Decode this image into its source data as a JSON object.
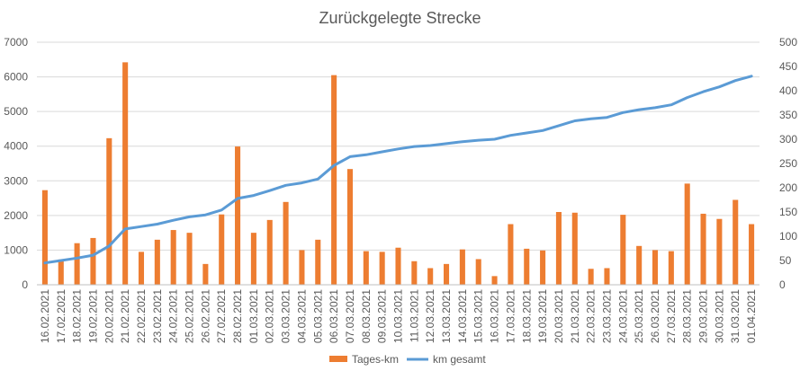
{
  "chart_data": {
    "type": "bar",
    "title": "Zurückgelegte Strecke",
    "xlabel": "",
    "ylabel": "",
    "ylim": [
      0,
      7000
    ],
    "y2lim": [
      0,
      500
    ],
    "yticks": [
      "0",
      "1000",
      "2000",
      "3000",
      "4000",
      "5000",
      "6000",
      "7000"
    ],
    "y2ticks": [
      "0",
      "50",
      "100",
      "150",
      "200",
      "250",
      "300",
      "350",
      "400",
      "450",
      "500"
    ],
    "grid": true,
    "legend": "bottom",
    "categories": [
      "16.02.2021",
      "17.02.2021",
      "18.02.2021",
      "19.02.2021",
      "20.02.2021",
      "21.02.2021",
      "22.02.2021",
      "23.02.2021",
      "24.02.2021",
      "25.02.2021",
      "26.02.2021",
      "27.02.2021",
      "28.02.2021",
      "01.03.2021",
      "02.03.2021",
      "03.03.2021",
      "04.03.2021",
      "05.03.2021",
      "06.03.2021",
      "07.03.2021",
      "08.03.2021",
      "09.03.2021",
      "10.03.2021",
      "11.03.2021",
      "12.03.2021",
      "13.03.2021",
      "14.03.2021",
      "15.03.2021",
      "16.03.2021",
      "17.03.2021",
      "18.03.2021",
      "19.03.2021",
      "20.03.2021",
      "21.03.2021",
      "22.03.2021",
      "23.03.2021",
      "24.03.2021",
      "25.03.2021",
      "26.03.2021",
      "27.03.2021",
      "28.03.2021",
      "29.03.2021",
      "30.03.2021",
      "31.03.2021",
      "01.04.2021"
    ],
    "series": [
      {
        "name": "Tages-km",
        "type": "bar",
        "axis": "left",
        "color": "#ed7d31",
        "values": [
          2730,
          730,
          1200,
          1350,
          4230,
          6420,
          950,
          1300,
          1580,
          1500,
          600,
          2030,
          3990,
          1500,
          1870,
          2390,
          1000,
          1300,
          6050,
          3340,
          970,
          950,
          1070,
          680,
          480,
          600,
          1020,
          740,
          250,
          1750,
          1040,
          990,
          2100,
          2080,
          460,
          480,
          2020,
          1120,
          1000,
          970,
          2920,
          2050,
          1900,
          2450,
          1750
        ]
      },
      {
        "name": "km gesamt",
        "type": "line",
        "axis": "right",
        "color": "#5b9bd5",
        "values": [
          45,
          50,
          55,
          61,
          80,
          115,
          120,
          125,
          133,
          140,
          144,
          154,
          178,
          184,
          194,
          205,
          210,
          218,
          246,
          264,
          268,
          274,
          280,
          285,
          287,
          291,
          295,
          298,
          300,
          308,
          313,
          318,
          328,
          338,
          342,
          345,
          355,
          361,
          365,
          371,
          386,
          398,
          408,
          421,
          430
        ]
      }
    ]
  }
}
